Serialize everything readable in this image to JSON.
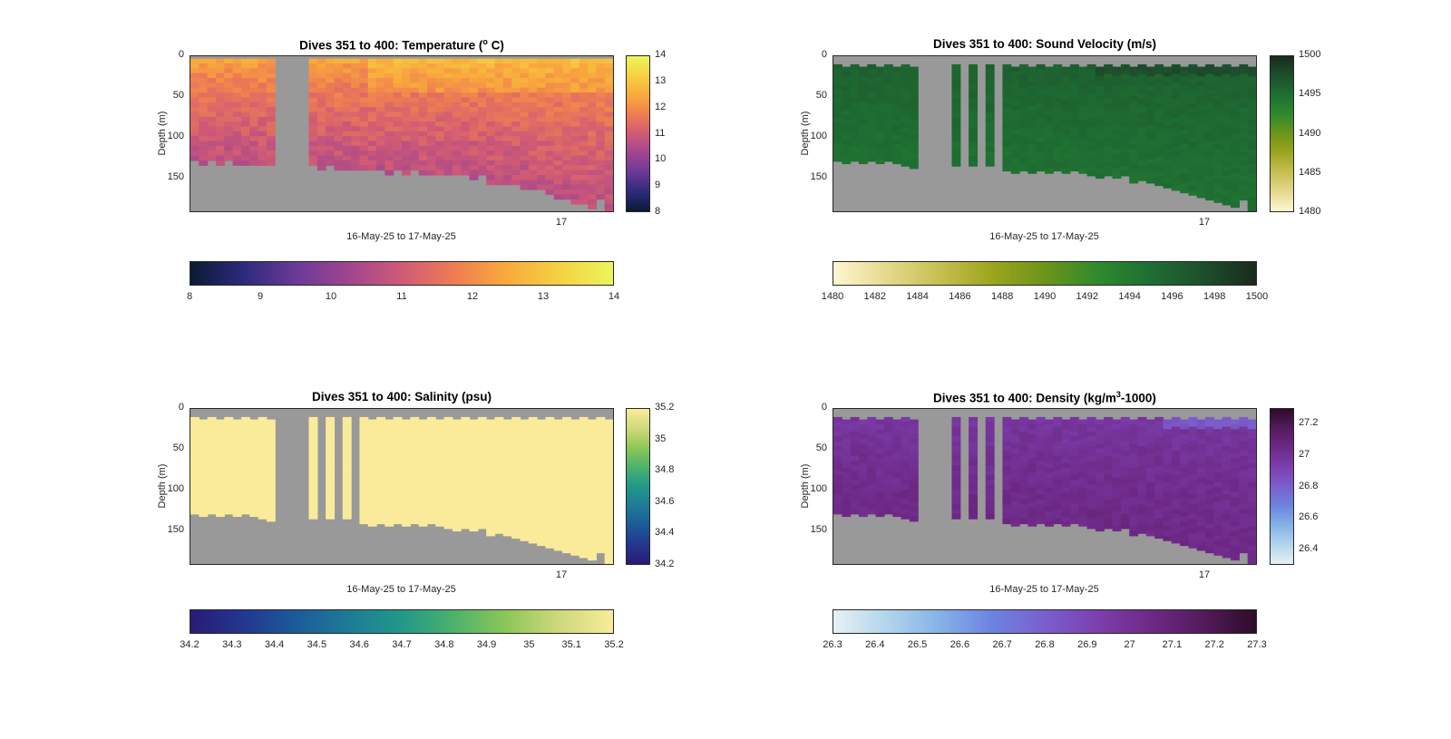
{
  "chart_data": [
    {
      "type": "heatmap",
      "title_main": "Dives 351 to 400: Temperature (",
      "title_sup": "o",
      "title_end": " C)",
      "xlabel": "16-May-25 to 17-May-25",
      "ylabel": "Depth (m)",
      "x_tick_labels": [
        "17"
      ],
      "y_tick_labels": [
        "0",
        "50",
        "100",
        "150"
      ],
      "y_ticks": [
        0,
        50,
        100,
        150
      ],
      "ylim": [
        0,
        192
      ],
      "dives": [
        351,
        400
      ],
      "color_range": [
        8,
        14
      ],
      "colormap": [
        "#0b1b33",
        "#2d2a7c",
        "#6a3a97",
        "#a0458f",
        "#cf5a76",
        "#ef7d52",
        "#f9aa3c",
        "#f5d143",
        "#ecf55b"
      ],
      "missing_color": "#999999",
      "side_colorbar_ticks": [
        "8",
        "9",
        "10",
        "11",
        "12",
        "13",
        "14"
      ],
      "bottom_colorbar_ticks": [
        "8",
        "9",
        "10",
        "11",
        "12",
        "13",
        "14"
      ],
      "profile_note": "warm surface layer ~12.5-13.5, cooling to ~10.5 near bottom",
      "surface_value": 12.6,
      "bottom_value": 10.7
    },
    {
      "type": "heatmap",
      "title_main": "Dives 351 to 400: Sound Velocity (m/s)",
      "title_sup": "",
      "title_end": "",
      "xlabel": "16-May-25 to 17-May-25",
      "ylabel": "Depth (m)",
      "x_tick_labels": [
        "17"
      ],
      "y_tick_labels": [
        "0",
        "50",
        "100",
        "150"
      ],
      "y_ticks": [
        0,
        50,
        100,
        150
      ],
      "ylim": [
        0,
        192
      ],
      "dives": [
        351,
        400
      ],
      "color_range": [
        1480,
        1500
      ],
      "colormap": [
        "#fdf7d2",
        "#e6d98e",
        "#c7bf53",
        "#9da51d",
        "#6d941b",
        "#2f8a2c",
        "#1e6e33",
        "#1d4f2c",
        "#1a2a1c"
      ],
      "missing_color": "#999999",
      "side_colorbar_ticks": [
        "1480",
        "1485",
        "1490",
        "1495",
        "1500"
      ],
      "bottom_colorbar_ticks": [
        "1480",
        "1482",
        "1484",
        "1486",
        "1488",
        "1490",
        "1492",
        "1494",
        "1496",
        "1498",
        "1500"
      ],
      "surface_value": 1496.5,
      "bottom_value": 1494.8
    },
    {
      "type": "heatmap",
      "title_main": "Dives 351 to 400: Salinity (psu)",
      "title_sup": "",
      "title_end": "",
      "xlabel": "16-May-25 to 17-May-25",
      "ylabel": "Depth (m)",
      "x_tick_labels": [
        "17"
      ],
      "y_tick_labels": [
        "0",
        "50",
        "100",
        "150"
      ],
      "y_ticks": [
        0,
        50,
        100,
        150
      ],
      "ylim": [
        0,
        192
      ],
      "dives": [
        351,
        400
      ],
      "color_range": [
        34.2,
        35.2
      ],
      "colormap": [
        "#2a1b74",
        "#23378f",
        "#1b5b99",
        "#1e7b96",
        "#229889",
        "#4cb26c",
        "#8fc757",
        "#cfd97c",
        "#faeb9b"
      ],
      "missing_color": "#999999",
      "side_colorbar_ticks": [
        "34.2",
        "34.4",
        "34.6",
        "34.8",
        "35",
        "35.2"
      ],
      "bottom_colorbar_ticks": [
        "34.2",
        "34.3",
        "34.4",
        "34.5",
        "34.6",
        "34.7",
        "34.8",
        "34.9",
        "35",
        "35.1",
        "35.2"
      ],
      "surface_value": 35.2,
      "bottom_value": 35.2
    },
    {
      "type": "heatmap",
      "title_main": "Dives 351 to 400: Density (kg/m",
      "title_sup": "3",
      "title_end": "-1000)",
      "xlabel": "16-May-25 to 17-May-25",
      "ylabel": "Depth (m)",
      "x_tick_labels": [
        "17"
      ],
      "y_tick_labels": [
        "0",
        "50",
        "100",
        "150"
      ],
      "y_ticks": [
        0,
        50,
        100,
        150
      ],
      "ylim": [
        0,
        192
      ],
      "dives": [
        351,
        400
      ],
      "color_range": [
        26.3,
        27.3
      ],
      "colormap": [
        "#e6f1f3",
        "#b3d5ec",
        "#86b2e7",
        "#6c83e0",
        "#7a5fcd",
        "#7c3fae",
        "#6e2986",
        "#531b5c",
        "#2d0c28"
      ],
      "missing_color": "#999999",
      "side_colorbar_ticks": [
        "26.4",
        "26.6",
        "26.8",
        "27",
        "27.2"
      ],
      "side_colorbar_values": [
        26.4,
        26.6,
        26.8,
        27,
        27.2
      ],
      "bottom_colorbar_ticks": [
        "26.3",
        "26.4",
        "26.5",
        "26.6",
        "26.7",
        "26.8",
        "26.9",
        "27",
        "27.1",
        "27.2",
        "27.3"
      ],
      "surface_value": 26.95,
      "bottom_value": 27.05
    }
  ]
}
